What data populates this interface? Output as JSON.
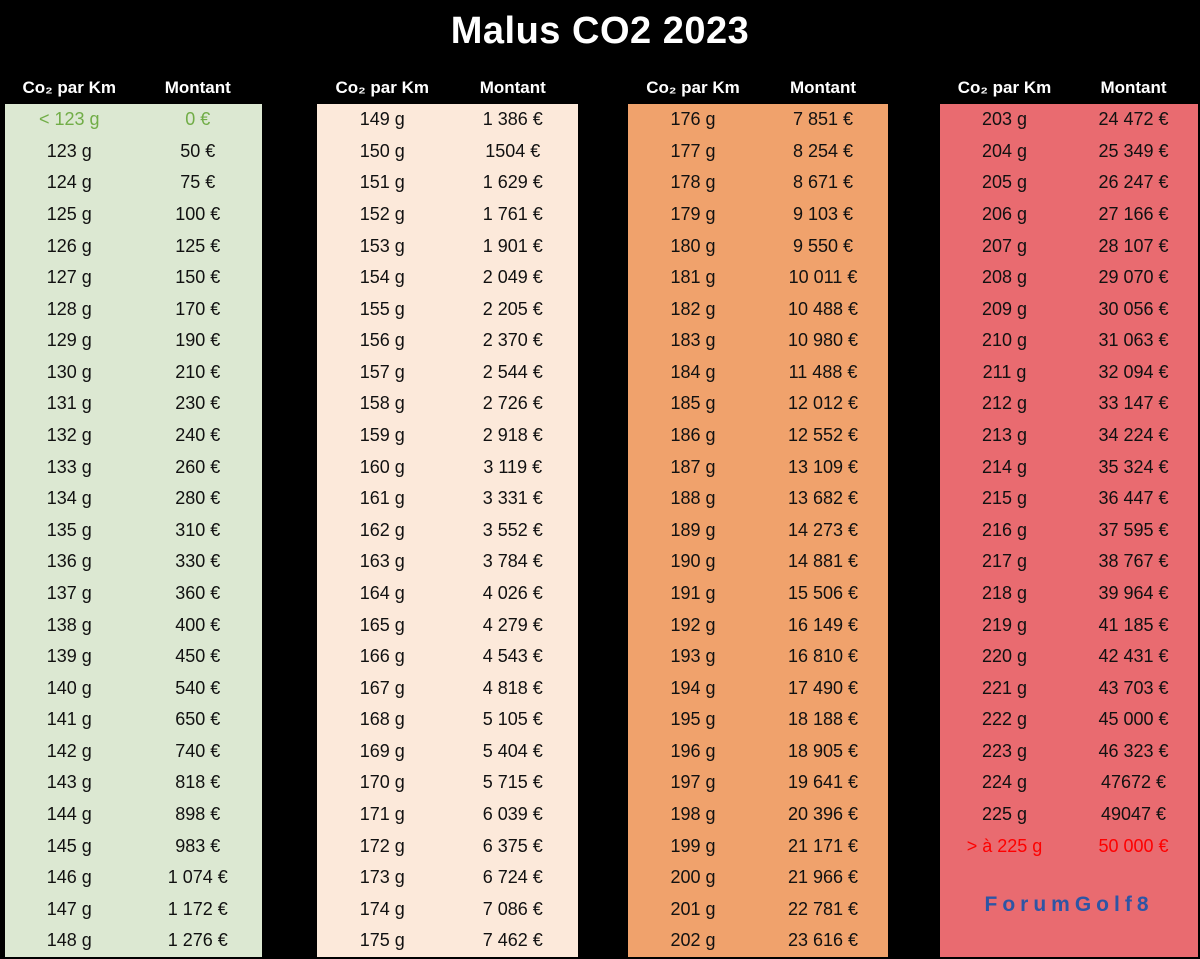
{
  "chart_data": {
    "type": "table",
    "title": "Malus CO2 2023",
    "col_headers": {
      "co2": "Co₂ par Km",
      "amount": "Montant"
    },
    "highlight_colors": {
      "exempt": "#71ad47",
      "max": "#fe0000"
    },
    "panels": [
      {
        "name": "green",
        "bg": "#dce8d2",
        "rows": [
          [
            "< 123 g",
            "0 €",
            "exempt"
          ],
          [
            "123 g",
            "50 €"
          ],
          [
            "124 g",
            "75 €"
          ],
          [
            "125 g",
            "100 €"
          ],
          [
            "126 g",
            "125 €"
          ],
          [
            "127 g",
            "150 €"
          ],
          [
            "128 g",
            "170 €"
          ],
          [
            "129 g",
            "190 €"
          ],
          [
            "130 g",
            "210 €"
          ],
          [
            "131 g",
            "230 €"
          ],
          [
            "132 g",
            "240 €"
          ],
          [
            "133 g",
            "260 €"
          ],
          [
            "134 g",
            "280 €"
          ],
          [
            "135 g",
            "310 €"
          ],
          [
            "136 g",
            "330 €"
          ],
          [
            "137 g",
            "360 €"
          ],
          [
            "138 g",
            "400 €"
          ],
          [
            "139 g",
            "450 €"
          ],
          [
            "140 g",
            "540 €"
          ],
          [
            "141 g",
            "650 €"
          ],
          [
            "142 g",
            "740 €"
          ],
          [
            "143 g",
            "818 €"
          ],
          [
            "144 g",
            "898 €"
          ],
          [
            "145 g",
            "983 €"
          ],
          [
            "146 g",
            "1 074 €"
          ],
          [
            "147 g",
            "1 172 €"
          ],
          [
            "148 g",
            "1 276 €"
          ]
        ]
      },
      {
        "name": "peach",
        "bg": "#fce9da",
        "rows": [
          [
            "149 g",
            "1 386 €"
          ],
          [
            "150 g",
            "1504 €"
          ],
          [
            "151 g",
            "1 629 €"
          ],
          [
            "152 g",
            "1 761 €"
          ],
          [
            "153 g",
            "1 901 €"
          ],
          [
            "154 g",
            "2 049 €"
          ],
          [
            "155 g",
            "2 205 €"
          ],
          [
            "156 g",
            "2 370 €"
          ],
          [
            "157 g",
            "2 544 €"
          ],
          [
            "158 g",
            "2 726 €"
          ],
          [
            "159 g",
            "2 918 €"
          ],
          [
            "160 g",
            "3 119 €"
          ],
          [
            "161 g",
            "3 331 €"
          ],
          [
            "162 g",
            "3 552 €"
          ],
          [
            "163 g",
            "3 784 €"
          ],
          [
            "164 g",
            "4 026 €"
          ],
          [
            "165 g",
            "4 279 €"
          ],
          [
            "166 g",
            "4 543 €"
          ],
          [
            "167 g",
            "4 818 €"
          ],
          [
            "168 g",
            "5 105 €"
          ],
          [
            "169 g",
            "5 404 €"
          ],
          [
            "170 g",
            "5 715 €"
          ],
          [
            "171 g",
            "6 039 €"
          ],
          [
            "172 g",
            "6 375 €"
          ],
          [
            "173 g",
            "6 724 €"
          ],
          [
            "174 g",
            "7 086 €"
          ],
          [
            "175 g",
            "7 462 €"
          ]
        ]
      },
      {
        "name": "orange",
        "bg": "#f0a26c",
        "rows": [
          [
            "176 g",
            "7 851 €"
          ],
          [
            "177 g",
            "8 254 €"
          ],
          [
            "178 g",
            "8 671 €"
          ],
          [
            "179 g",
            "9 103 €"
          ],
          [
            "180 g",
            "9 550 €"
          ],
          [
            "181 g",
            "10 011 €"
          ],
          [
            "182 g",
            "10 488 €"
          ],
          [
            "183 g",
            "10 980 €"
          ],
          [
            "184 g",
            "11 488 €"
          ],
          [
            "185 g",
            "12 012 €"
          ],
          [
            "186 g",
            "12 552 €"
          ],
          [
            "187 g",
            "13 109 €"
          ],
          [
            "188 g",
            "13 682 €"
          ],
          [
            "189 g",
            "14 273 €"
          ],
          [
            "190 g",
            "14 881 €"
          ],
          [
            "191 g",
            "15 506 €"
          ],
          [
            "192 g",
            "16 149 €"
          ],
          [
            "193 g",
            "16 810 €"
          ],
          [
            "194 g",
            "17 490 €"
          ],
          [
            "195 g",
            "18 188 €"
          ],
          [
            "196 g",
            "18 905 €"
          ],
          [
            "197 g",
            "19 641 €"
          ],
          [
            "198 g",
            "20 396 €"
          ],
          [
            "199 g",
            "21 171 €"
          ],
          [
            "200 g",
            "21 966 €"
          ],
          [
            "201 g",
            "22 781 €"
          ],
          [
            "202 g",
            "23 616 €"
          ]
        ]
      },
      {
        "name": "red",
        "bg": "#e96b70",
        "rows": [
          [
            "203 g",
            "24 472 €"
          ],
          [
            "204 g",
            "25 349 €"
          ],
          [
            "205 g",
            "26 247 €"
          ],
          [
            "206 g",
            "27 166 €"
          ],
          [
            "207 g",
            "28 107 €"
          ],
          [
            "208 g",
            "29 070 €"
          ],
          [
            "209 g",
            "30 056 €"
          ],
          [
            "210 g",
            "31 063 €"
          ],
          [
            "211 g",
            "32 094 €"
          ],
          [
            "212 g",
            "33 147 €"
          ],
          [
            "213 g",
            "34 224 €"
          ],
          [
            "214 g",
            "35 324 €"
          ],
          [
            "215 g",
            "36 447 €"
          ],
          [
            "216 g",
            "37 595 €"
          ],
          [
            "217 g",
            "38 767 €"
          ],
          [
            "218 g",
            "39 964 €"
          ],
          [
            "219 g",
            "41 185 €"
          ],
          [
            "220 g",
            "42 431 €"
          ],
          [
            "221 g",
            "43 703 €"
          ],
          [
            "222 g",
            "45 000 €"
          ],
          [
            "223 g",
            "46 323 €"
          ],
          [
            "224 g",
            "47672 €"
          ],
          [
            "225 g",
            "49047 €"
          ],
          [
            "> à 225 g",
            "50 000 €",
            "max"
          ]
        ]
      }
    ],
    "watermark": {
      "text": "ForumGolf8",
      "color": "#2e55a4"
    }
  }
}
